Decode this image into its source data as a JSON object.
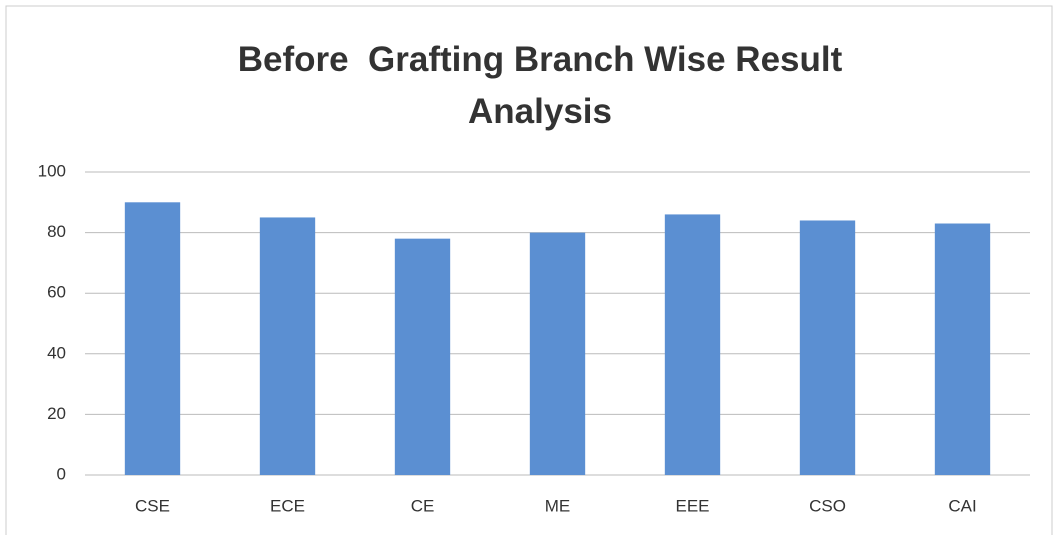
{
  "chart_data": {
    "type": "bar",
    "title": "Before  Grafting Branch Wise Result Analysis",
    "categories": [
      "CSE",
      "ECE",
      "CE",
      "ME",
      "EEE",
      "CSO",
      "CAI"
    ],
    "values": [
      90,
      85,
      78,
      80,
      86,
      84,
      83
    ],
    "color": "#5b8fd2",
    "ylim": [
      0,
      100
    ],
    "yticks": [
      0,
      20,
      40,
      60,
      80,
      100
    ],
    "grid": true
  }
}
